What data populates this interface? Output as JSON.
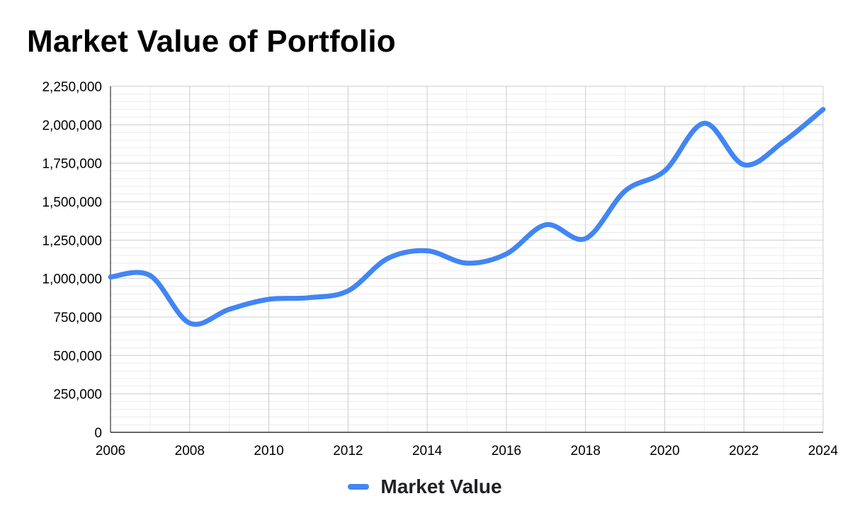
{
  "chart_data": {
    "type": "line",
    "title": "Market Value of Portfolio",
    "xlabel": "",
    "ylabel": "",
    "x": [
      2006,
      2007,
      2008,
      2009,
      2010,
      2011,
      2012,
      2013,
      2014,
      2015,
      2016,
      2017,
      2018,
      2019,
      2020,
      2021,
      2022,
      2023,
      2024
    ],
    "series": [
      {
        "name": "Market Value",
        "color": "#4285F4",
        "values": [
          1010000,
          1020000,
          710000,
          800000,
          865000,
          875000,
          920000,
          1130000,
          1180000,
          1100000,
          1160000,
          1350000,
          1260000,
          1570000,
          1700000,
          2010000,
          1740000,
          1890000,
          2100000
        ]
      }
    ],
    "xlim": [
      2006,
      2024
    ],
    "ylim": [
      0,
      2250000
    ],
    "x_ticks": [
      "2006",
      "2008",
      "2010",
      "2012",
      "2014",
      "2016",
      "2018",
      "2020",
      "2022",
      "2024"
    ],
    "y_ticks": [
      "0",
      "250,000",
      "500,000",
      "750,000",
      "1,000,000",
      "1,250,000",
      "1,500,000",
      "1,750,000",
      "2,000,000",
      "2,250,000"
    ],
    "grid": true,
    "legend_position": "bottom"
  }
}
